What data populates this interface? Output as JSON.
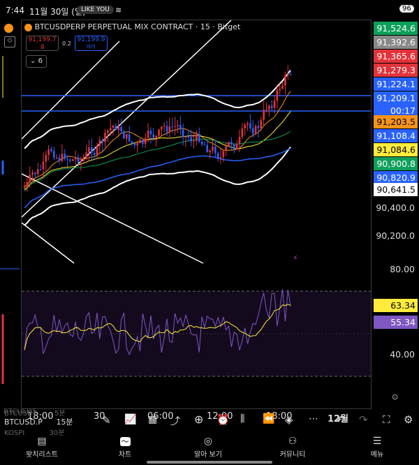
{
  "status": {
    "time": "7:44",
    "date": "11월 30일 (일)",
    "pill": "LIKE YOU",
    "battery": "96"
  },
  "chart": {
    "title": "BTCUSDPERP PERPETUAL MIX CONTRACT · 15 · Bitget",
    "bid_price": "91,199.7",
    "bid_label": "셀",
    "spread": "0.2",
    "ask_price": "91,199.9",
    "ask_label": "바이",
    "indicator_count": "6"
  },
  "price_tags": [
    {
      "label": "91,524.6",
      "bg": "#0ea05b",
      "fg": "#ffffff"
    },
    {
      "label": "91,392.6",
      "bg": "#888888",
      "fg": "#ffffff"
    },
    {
      "label": "91,365.6",
      "bg": "#e2333b",
      "fg": "#ffffff"
    },
    {
      "label": "91,279.3",
      "bg": "#e2333b",
      "fg": "#ffffff"
    },
    {
      "label": "91,224.1",
      "bg": "#2962ff",
      "fg": "#ffffff"
    },
    {
      "label": "91,209.1",
      "bg": "#2962ff",
      "fg": "#ffffff"
    },
    {
      "label": "00:17",
      "bg": "#2962ff",
      "fg": "#ffffff"
    },
    {
      "label": "91,203.5",
      "bg": "#f7931a",
      "fg": "#000000"
    },
    {
      "label": "91,108.4",
      "bg": "#2962ff",
      "fg": "#ffffff"
    },
    {
      "label": "91,084.6",
      "bg": "#ffeb3b",
      "fg": "#000000"
    },
    {
      "label": "90,900.8",
      "bg": "#0ea05b",
      "fg": "#ffffff"
    },
    {
      "label": "90,820.9",
      "bg": "#2962ff",
      "fg": "#ffffff"
    },
    {
      "label": "90,641.5",
      "bg": "#ffffff",
      "fg": "#000000"
    }
  ],
  "price_axis": [
    "90,400.0",
    "90,200.0"
  ],
  "rsi_axis": [
    "80.00",
    "40.00"
  ],
  "rsi_tags": [
    {
      "label": "63.34",
      "bg": "#ffeb3b",
      "fg": "#000000"
    },
    {
      "label": "55.34",
      "bg": "#7e57c2",
      "fg": "#ffffff"
    }
  ],
  "time_axis": [
    "18:00",
    "30",
    "06:00",
    "12:00",
    "18:00",
    "12월"
  ],
  "watchlist": [
    {
      "symbol": "BTCUSDT",
      "tf": "5분"
    },
    {
      "symbol": "BTCUSD.P",
      "tf": "15분"
    },
    {
      "symbol": "KOSPI",
      "tf": "30분"
    }
  ],
  "toolbar_icons": [
    "pen-icon",
    "indicators-icon",
    "templates-icon",
    "drawing-icon",
    "add-icon",
    "alert-icon",
    "candle-type-icon",
    "replay-icon",
    "layers-icon",
    "more-icon",
    "undo-icon",
    "redo-icon",
    "fullscreen-icon",
    "settings-icon"
  ],
  "nav": [
    {
      "label": "왓치리스트",
      "icon": "watchlist-icon"
    },
    {
      "label": "차트",
      "icon": "chart-icon"
    },
    {
      "label": "알아 보기",
      "icon": "explore-icon"
    },
    {
      "label": "커뮤니티",
      "icon": "community-icon"
    },
    {
      "label": "메뉴",
      "icon": "menu-icon"
    }
  ],
  "colors": {
    "up": "#e2333b",
    "down": "#2962ff",
    "band": "#ffffff",
    "rsi": "#7e57c2",
    "rsi_ma": "#ffeb3b"
  }
}
